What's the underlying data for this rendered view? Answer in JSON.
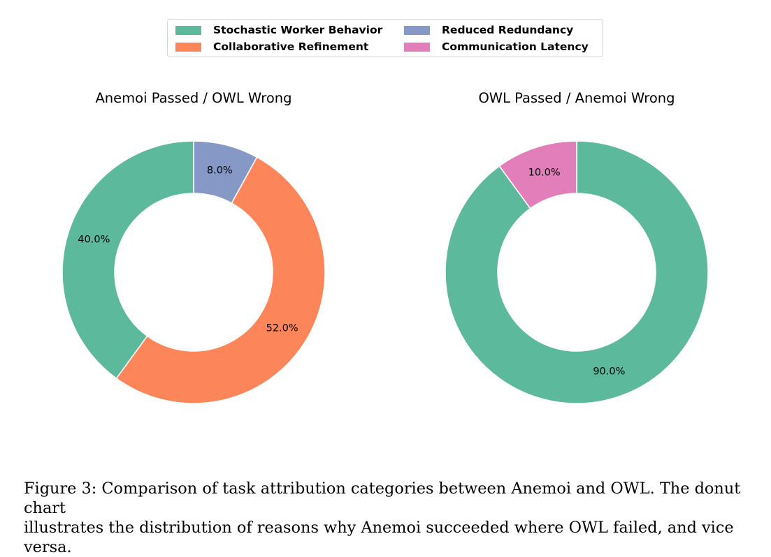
{
  "colors": {
    "stochastic": "#5cb99c",
    "collaborative": "#fc8659",
    "redundancy": "#8698c6",
    "latency": "#e27fbb"
  },
  "legend": [
    {
      "label": "Stochastic Worker Behavior",
      "color": "#5cb99c"
    },
    {
      "label": "Collaborative Refinement",
      "color": "#fc8659"
    },
    {
      "label": "Reduced Redundancy",
      "color": "#8698c6"
    },
    {
      "label": "Communication Latency",
      "color": "#e27fbb"
    }
  ],
  "chart_data": [
    {
      "type": "pie",
      "style": "donut",
      "title": "Anemoi Passed / OWL Wrong",
      "categories": [
        "Reduced Redundancy",
        "Collaborative Refinement",
        "Stochastic Worker Behavior"
      ],
      "values": [
        8.0,
        52.0,
        40.0
      ],
      "labels": [
        "8.0%",
        "52.0%",
        "40.0%"
      ],
      "colors": [
        "#8698c6",
        "#fc8659",
        "#5cb99c"
      ],
      "start": "top",
      "direction": "clockwise"
    },
    {
      "type": "pie",
      "style": "donut",
      "title": "OWL Passed / Anemoi Wrong",
      "categories": [
        "Stochastic Worker Behavior",
        "Communication Latency"
      ],
      "values": [
        90.0,
        10.0
      ],
      "labels": [
        "90.0%",
        "10.0%"
      ],
      "colors": [
        "#5cb99c",
        "#e27fbb"
      ],
      "start": "top",
      "direction": "clockwise"
    }
  ],
  "caption": {
    "line1": "Figure 3: Comparison of task attribution categories between Anemoi and OWL. The donut chart",
    "line2": "illustrates the distribution of reasons why Anemoi succeeded where OWL failed, and vice versa."
  }
}
